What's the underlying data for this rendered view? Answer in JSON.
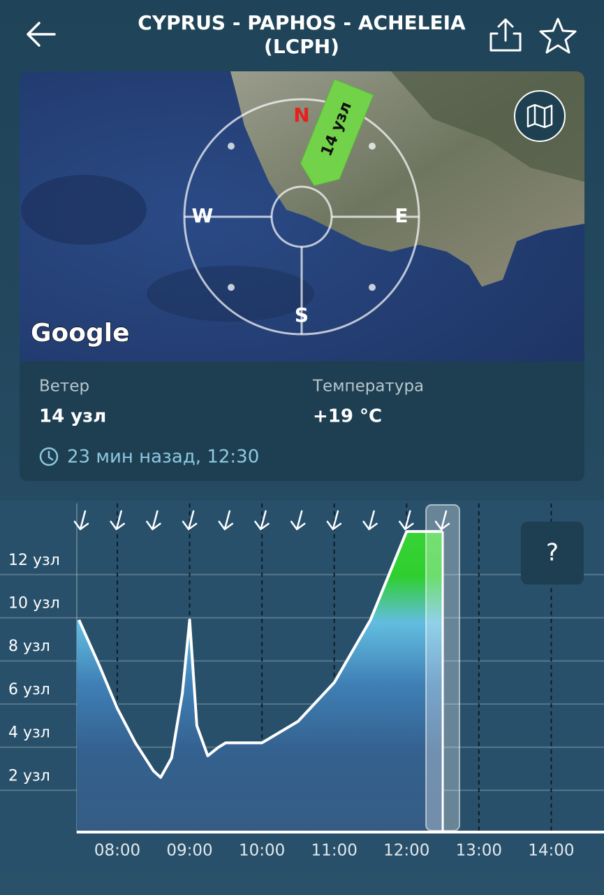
{
  "header": {
    "title_line1": "CYPRUS - PAPHOS - ACHELEIA",
    "title_line2": "(LCPH)"
  },
  "map": {
    "north": "N",
    "west": "W",
    "east": "E",
    "south": "S",
    "arrow_label": "14 узл",
    "logo": "Google"
  },
  "info": {
    "wind_label": "Ветер",
    "wind_value": "14 узл",
    "temp_label": "Температура",
    "temp_value": "+19 °C",
    "updated": "23 мин назад, 12:30"
  },
  "help": "?",
  "chart_data": {
    "type": "area",
    "x": [
      7.47,
      7.75,
      8.0,
      8.25,
      8.5,
      8.6,
      8.75,
      8.9,
      9.0,
      9.1,
      9.25,
      9.4,
      9.5,
      10.0,
      10.5,
      11.0,
      11.5,
      12.0,
      12.5
    ],
    "series": [
      {
        "values": [
          9.9,
          7.8,
          5.8,
          4.2,
          2.9,
          2.6,
          3.5,
          6.5,
          9.9,
          5.0,
          3.6,
          4.0,
          4.2,
          4.2,
          5.2,
          7.0,
          9.9,
          14.0,
          14.0
        ],
        "color": "#ffffff"
      }
    ],
    "xlim": [
      7.44,
      14.73
    ],
    "ylim": [
      0,
      15.3
    ],
    "xticks": [
      {
        "value": 8,
        "label": "08:00"
      },
      {
        "value": 9,
        "label": "09:00"
      },
      {
        "value": 10,
        "label": "10:00"
      },
      {
        "value": 11,
        "label": "11:00"
      },
      {
        "value": 12,
        "label": "12:00"
      },
      {
        "value": 13,
        "label": "13:00"
      },
      {
        "value": 14,
        "label": "14:00"
      }
    ],
    "yticks": [
      {
        "value": 2,
        "label": "2 узл"
      },
      {
        "value": 4,
        "label": "4 узл"
      },
      {
        "value": 6,
        "label": "6 узл"
      },
      {
        "value": 8,
        "label": "8 узл"
      },
      {
        "value": 10,
        "label": "10 узл"
      },
      {
        "value": 12,
        "label": "12 узл"
      }
    ],
    "grid": true
  }
}
